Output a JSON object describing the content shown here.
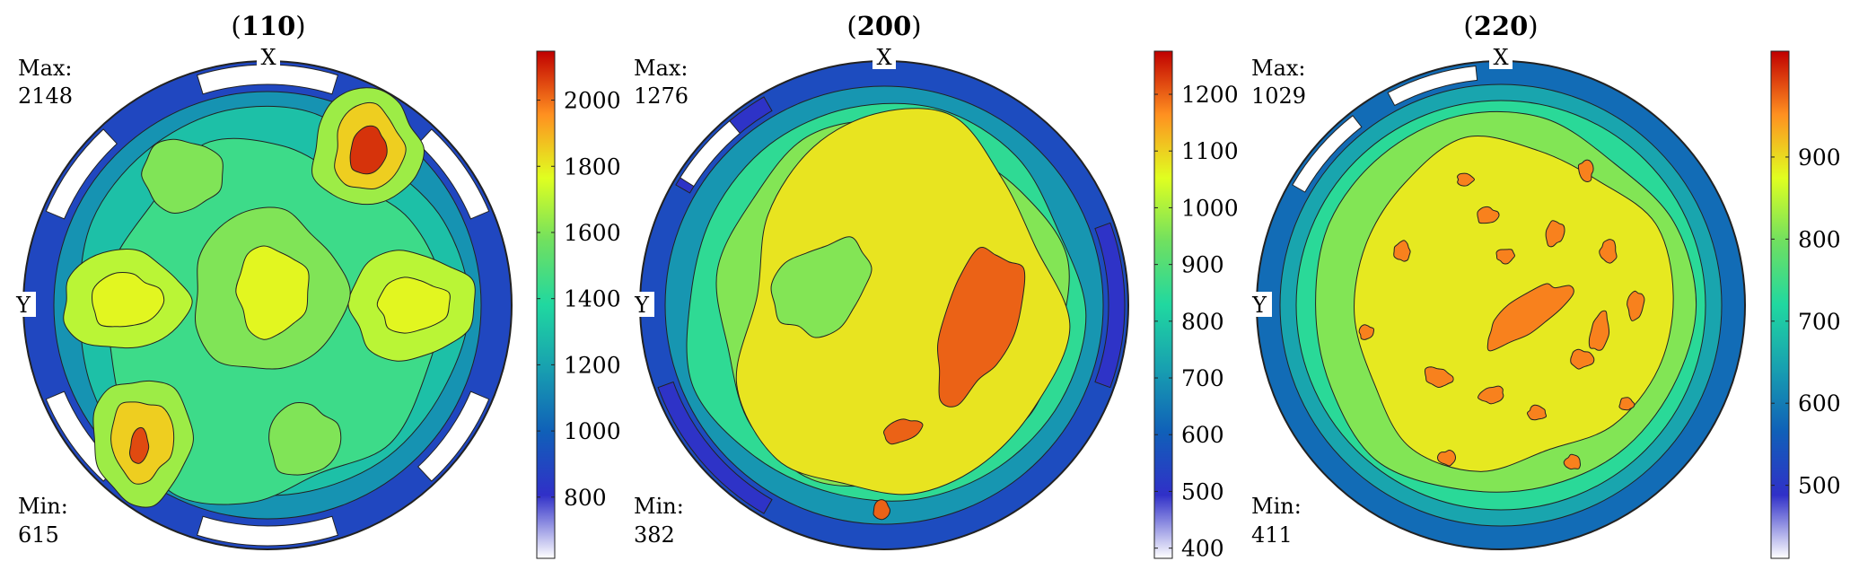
{
  "figure": {
    "colormap": [
      "#ffffff",
      "#3030c8",
      "#1060b8",
      "#18a0b0",
      "#20d8a0",
      "#70e060",
      "#e0ff20",
      "#ff9020",
      "#c00000"
    ],
    "outline_color": "#222222",
    "panels": [
      {
        "title_open": "(",
        "title_bold": "110",
        "title_close": ")",
        "max_label": "Max:",
        "max_value": "2148",
        "min_label": "Min:",
        "min_value": "615",
        "x_label": "X",
        "y_label": "Y",
        "colorbar_ticks": [
          "800",
          "1000",
          "1200",
          "1400",
          "1600",
          "1800",
          "2000"
        ]
      },
      {
        "title_open": "(",
        "title_bold": "200",
        "title_close": ")",
        "max_label": "Max:",
        "max_value": "1276",
        "min_label": "Min:",
        "min_value": "382",
        "x_label": "X",
        "y_label": "Y",
        "colorbar_ticks": [
          "400",
          "500",
          "600",
          "700",
          "800",
          "900",
          "1000",
          "1100",
          "1200"
        ]
      },
      {
        "title_open": "(",
        "title_bold": "220",
        "title_close": ")",
        "max_label": "Max:",
        "max_value": "1029",
        "min_label": "Min:",
        "min_value": "411",
        "x_label": "X",
        "y_label": "Y",
        "colorbar_ticks": [
          "500",
          "600",
          "700",
          "800",
          "900"
        ]
      }
    ]
  },
  "chart_data": [
    {
      "type": "heatmap",
      "subtype": "pole figure (stereographic projection, filled contours)",
      "title": "(110)",
      "max": 2148,
      "min": 615,
      "colorbar_range": [
        615,
        2148
      ],
      "colorbar_ticks": [
        800,
        1000,
        1200,
        1400,
        1600,
        1800,
        2000
      ],
      "axis_labels": {
        "top": "X",
        "left": "Y"
      },
      "peaks": [
        {
          "value": 2148,
          "location": "upper-right"
        },
        {
          "value": 2100,
          "location": "lower-left"
        },
        {
          "value": 1750,
          "location": "left"
        },
        {
          "value": 1750,
          "location": "right"
        },
        {
          "value": 1700,
          "location": "center"
        }
      ]
    },
    {
      "type": "heatmap",
      "subtype": "pole figure (stereographic projection, filled contours)",
      "title": "(200)",
      "max": 1276,
      "min": 382,
      "colorbar_range": [
        382,
        1276
      ],
      "colorbar_ticks": [
        400,
        500,
        600,
        700,
        800,
        900,
        1000,
        1100,
        1200
      ],
      "axis_labels": {
        "top": "X",
        "left": "Y"
      },
      "peaks": [
        {
          "value": 1200,
          "location": "right of center"
        },
        {
          "value": 1200,
          "location": "lower center"
        }
      ]
    },
    {
      "type": "heatmap",
      "subtype": "pole figure (stereographic projection, filled contours)",
      "title": "(220)",
      "max": 1029,
      "min": 411,
      "colorbar_range": [
        411,
        1029
      ],
      "colorbar_ticks": [
        500,
        600,
        700,
        800,
        900
      ],
      "axis_labels": {
        "top": "X",
        "left": "Y"
      },
      "peaks": [
        {
          "value": 960,
          "location": "center"
        },
        {
          "value": 960,
          "location": "scattered"
        }
      ]
    }
  ]
}
